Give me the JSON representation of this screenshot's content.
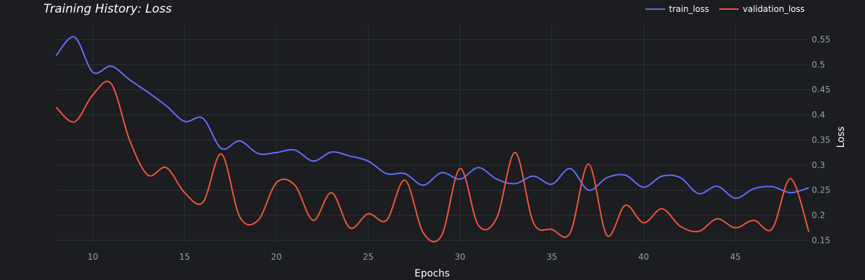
{
  "chart_data": {
    "type": "line",
    "title": "Training History: Loss",
    "xlabel": "Epochs",
    "ylabel": "Loss",
    "xlim": [
      8,
      49
    ],
    "ylim": [
      0.145,
      0.58
    ],
    "xticks": [
      10,
      15,
      20,
      25,
      30,
      35,
      40,
      45
    ],
    "yticks": [
      0.15,
      0.2,
      0.25,
      0.3,
      0.35,
      0.4,
      0.45,
      0.5,
      0.55
    ],
    "grid": true,
    "legend_position": "top-right",
    "series": [
      {
        "name": "train_loss",
        "color": "#636efa",
        "x": [
          8,
          9,
          10,
          11,
          12,
          13,
          14,
          15,
          16,
          17,
          18,
          19,
          20,
          21,
          22,
          23,
          24,
          25,
          26,
          27,
          28,
          29,
          30,
          31,
          32,
          33,
          34,
          35,
          36,
          37,
          38,
          39,
          40,
          41,
          42,
          43,
          44,
          45,
          46,
          47,
          48,
          49
        ],
        "values": [
          0.518,
          0.555,
          0.485,
          0.497,
          0.47,
          0.445,
          0.418,
          0.387,
          0.393,
          0.333,
          0.348,
          0.323,
          0.325,
          0.33,
          0.308,
          0.326,
          0.318,
          0.308,
          0.283,
          0.283,
          0.26,
          0.285,
          0.272,
          0.295,
          0.272,
          0.263,
          0.278,
          0.262,
          0.293,
          0.25,
          0.275,
          0.28,
          0.256,
          0.278,
          0.275,
          0.243,
          0.258,
          0.234,
          0.253,
          0.257,
          0.245,
          0.255
        ]
      },
      {
        "name": "validation_loss",
        "color": "#ef553b",
        "x": [
          8,
          9,
          10,
          11,
          12,
          13,
          14,
          15,
          16,
          17,
          18,
          19,
          20,
          21,
          22,
          23,
          24,
          25,
          26,
          27,
          28,
          29,
          30,
          31,
          32,
          33,
          34,
          35,
          36,
          37,
          38,
          39,
          40,
          41,
          42,
          43,
          44,
          45,
          46,
          47,
          48,
          49
        ],
        "values": [
          0.415,
          0.386,
          0.44,
          0.462,
          0.35,
          0.28,
          0.295,
          0.245,
          0.226,
          0.322,
          0.197,
          0.19,
          0.265,
          0.26,
          0.19,
          0.245,
          0.175,
          0.203,
          0.19,
          0.27,
          0.165,
          0.16,
          0.293,
          0.18,
          0.195,
          0.325,
          0.185,
          0.172,
          0.165,
          0.302,
          0.16,
          0.22,
          0.185,
          0.213,
          0.178,
          0.168,
          0.193,
          0.175,
          0.19,
          0.173,
          0.273,
          0.167
        ]
      }
    ]
  }
}
